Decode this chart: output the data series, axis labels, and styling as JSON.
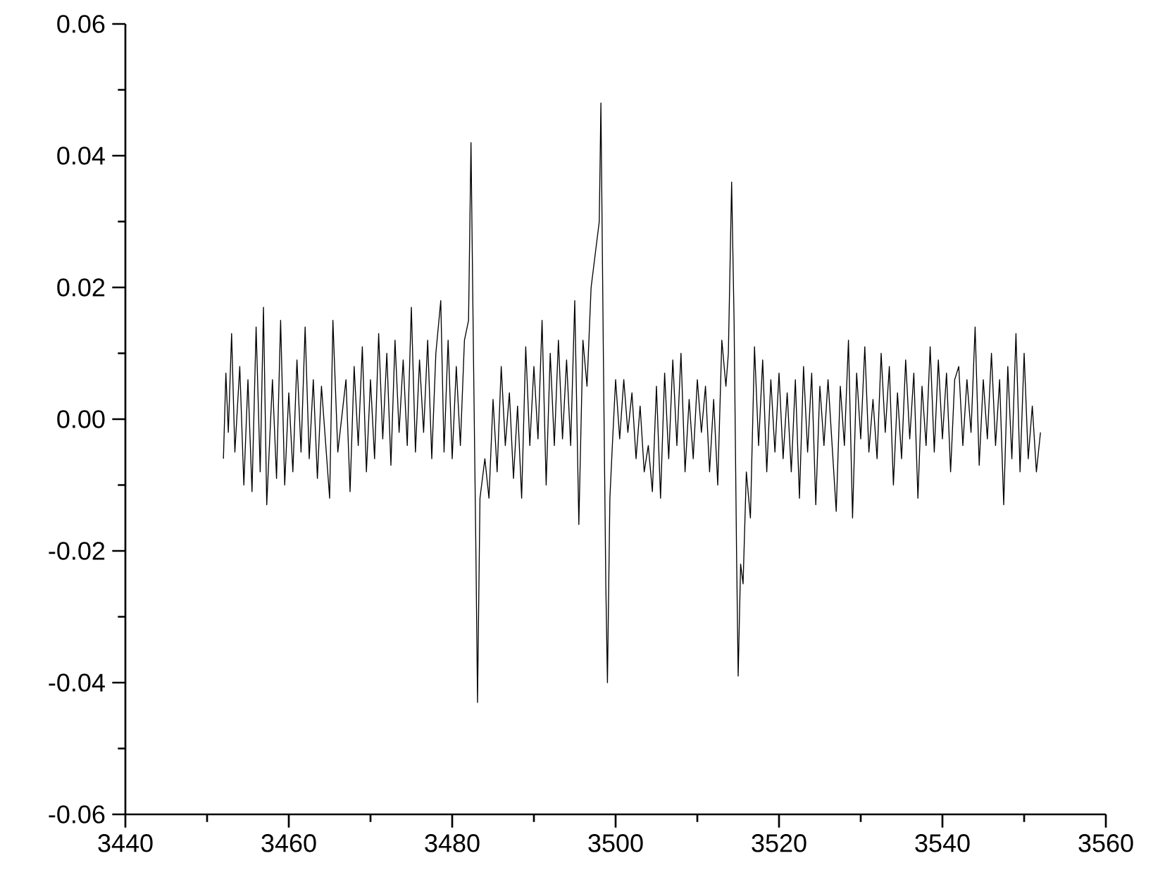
{
  "chart_data": {
    "type": "line",
    "color": "#000000",
    "marker": "none",
    "line_style": "solid",
    "xlim": [
      3440,
      3560
    ],
    "ylim": [
      -0.06,
      0.06
    ],
    "xticks": [
      3440,
      3460,
      3480,
      3500,
      3520,
      3540,
      3560
    ],
    "yticks": [
      {
        "value": -0.06,
        "label": "-0.06"
      },
      {
        "value": -0.04,
        "label": "-0.04"
      },
      {
        "value": -0.02,
        "label": "-0.02"
      },
      {
        "value": 0,
        "label": "0.00"
      },
      {
        "value": 0.02,
        "label": "0.02"
      },
      {
        "value": 0.04,
        "label": "0.04"
      },
      {
        "value": 0.06,
        "label": "0.06"
      }
    ],
    "x": [
      3452,
      3452.3,
      3452.6,
      3453,
      3453.4,
      3454,
      3454.5,
      3455,
      3455.5,
      3456,
      3456.5,
      3456.9,
      3457.3,
      3458,
      3458.5,
      3459,
      3459.5,
      3460,
      3460.5,
      3461,
      3461.5,
      3462,
      3462.5,
      3463,
      3463.5,
      3464,
      3465,
      3465.4,
      3466,
      3467,
      3467.5,
      3468,
      3468.5,
      3469,
      3469.5,
      3470,
      3470.5,
      3471,
      3471.5,
      3472,
      3472.5,
      3473,
      3473.5,
      3474,
      3474.5,
      3475,
      3475.5,
      3476,
      3476.5,
      3477,
      3477.5,
      3478,
      3478.6,
      3479,
      3479.5,
      3480,
      3480.5,
      3481,
      3481.5,
      3482,
      3482.3,
      3482.6,
      3482.9,
      3483.1,
      3483.4,
      3484,
      3484.5,
      3485,
      3485.5,
      3486,
      3486.5,
      3487,
      3487.5,
      3488,
      3488.5,
      3489,
      3489.5,
      3490,
      3490.5,
      3491,
      3491.5,
      3492,
      3492.5,
      3493,
      3493.5,
      3494,
      3494.5,
      3495,
      3495.5,
      3496,
      3496.5,
      3497,
      3497.5,
      3498,
      3498.2,
      3498.5,
      3498.8,
      3499.0,
      3499.3,
      3499.6,
      3500,
      3500.5,
      3501,
      3501.5,
      3502,
      3502.5,
      3503,
      3503.5,
      3504,
      3504.5,
      3505,
      3505.5,
      3506,
      3506.5,
      3507,
      3507.5,
      3508,
      3508.5,
      3509,
      3509.5,
      3510,
      3510.5,
      3511,
      3511.5,
      3512,
      3512.5,
      3513,
      3513.5,
      3513.8,
      3514.2,
      3514.5,
      3514.8,
      3515.0,
      3515.3,
      3515.6,
      3516,
      3516.5,
      3517,
      3517.5,
      3518,
      3518.5,
      3519,
      3519.5,
      3520,
      3520.5,
      3521,
      3521.5,
      3522,
      3522.5,
      3523,
      3523.5,
      3524,
      3524.5,
      3525,
      3525.5,
      3526,
      3527,
      3527.5,
      3528,
      3528.5,
      3529,
      3529.5,
      3530,
      3530.5,
      3531,
      3531.5,
      3532,
      3532.5,
      3533,
      3533.5,
      3534,
      3534.5,
      3535,
      3535.5,
      3536,
      3536.5,
      3537,
      3537.5,
      3538,
      3538.5,
      3539,
      3539.5,
      3540,
      3540.5,
      3541,
      3541.5,
      3542,
      3542.5,
      3543,
      3543.5,
      3544,
      3544.5,
      3545,
      3545.5,
      3546,
      3546.5,
      3547,
      3547.5,
      3548,
      3548.5,
      3549,
      3549.5,
      3550,
      3550.5,
      3551,
      3551.5,
      3552
    ],
    "values": [
      -0.006,
      0.007,
      -0.002,
      0.013,
      -0.005,
      0.008,
      -0.01,
      0.006,
      -0.011,
      0.014,
      -0.008,
      0.017,
      -0.013,
      0.006,
      -0.009,
      0.015,
      -0.01,
      0.004,
      -0.008,
      0.009,
      -0.005,
      0.014,
      -0.006,
      0.006,
      -0.009,
      0.005,
      -0.012,
      0.015,
      -0.005,
      0.006,
      -0.011,
      0.008,
      -0.004,
      0.011,
      -0.008,
      0.006,
      -0.006,
      0.013,
      -0.003,
      0.01,
      -0.007,
      0.012,
      -0.002,
      0.009,
      -0.004,
      0.017,
      -0.005,
      0.009,
      -0.002,
      0.012,
      -0.006,
      0.01,
      0.018,
      -0.005,
      0.012,
      -0.006,
      0.008,
      -0.004,
      0.012,
      0.015,
      0.042,
      0.01,
      -0.02,
      -0.043,
      -0.012,
      -0.006,
      -0.012,
      0.003,
      -0.008,
      0.008,
      -0.004,
      0.004,
      -0.009,
      0.002,
      -0.012,
      0.011,
      -0.004,
      0.008,
      -0.003,
      0.015,
      -0.01,
      0.01,
      -0.004,
      0.012,
      -0.003,
      0.009,
      -0.004,
      0.018,
      -0.016,
      0.012,
      0.005,
      0.02,
      0.025,
      0.03,
      0.048,
      0.01,
      -0.025,
      -0.04,
      -0.012,
      -0.004,
      0.006,
      -0.003,
      0.006,
      -0.002,
      0.004,
      -0.006,
      0.002,
      -0.008,
      -0.004,
      -0.011,
      0.005,
      -0.012,
      0.007,
      -0.006,
      0.009,
      -0.004,
      0.01,
      -0.008,
      0.003,
      -0.006,
      0.006,
      -0.002,
      0.005,
      -0.008,
      0.003,
      -0.01,
      0.012,
      0.005,
      0.01,
      0.036,
      0.015,
      -0.02,
      -0.039,
      -0.022,
      -0.025,
      -0.008,
      -0.015,
      0.011,
      -0.004,
      0.009,
      -0.008,
      0.006,
      -0.005,
      0.007,
      -0.006,
      0.004,
      -0.008,
      0.006,
      -0.012,
      0.008,
      -0.005,
      0.007,
      -0.013,
      0.005,
      -0.004,
      0.006,
      -0.014,
      0.005,
      -0.004,
      0.012,
      -0.015,
      0.007,
      -0.003,
      0.011,
      -0.005,
      0.003,
      -0.006,
      0.01,
      -0.002,
      0.008,
      -0.01,
      0.004,
      -0.006,
      0.009,
      -0.003,
      0.007,
      -0.012,
      0.005,
      -0.004,
      0.011,
      -0.005,
      0.009,
      -0.003,
      0.007,
      -0.008,
      0.006,
      0.008,
      -0.004,
      0.006,
      -0.002,
      0.014,
      -0.007,
      0.006,
      -0.003,
      0.01,
      -0.004,
      0.006,
      -0.013,
      0.008,
      -0.006,
      0.013,
      -0.008,
      0.01,
      -0.006,
      0.002,
      -0.008,
      -0.002
    ]
  }
}
